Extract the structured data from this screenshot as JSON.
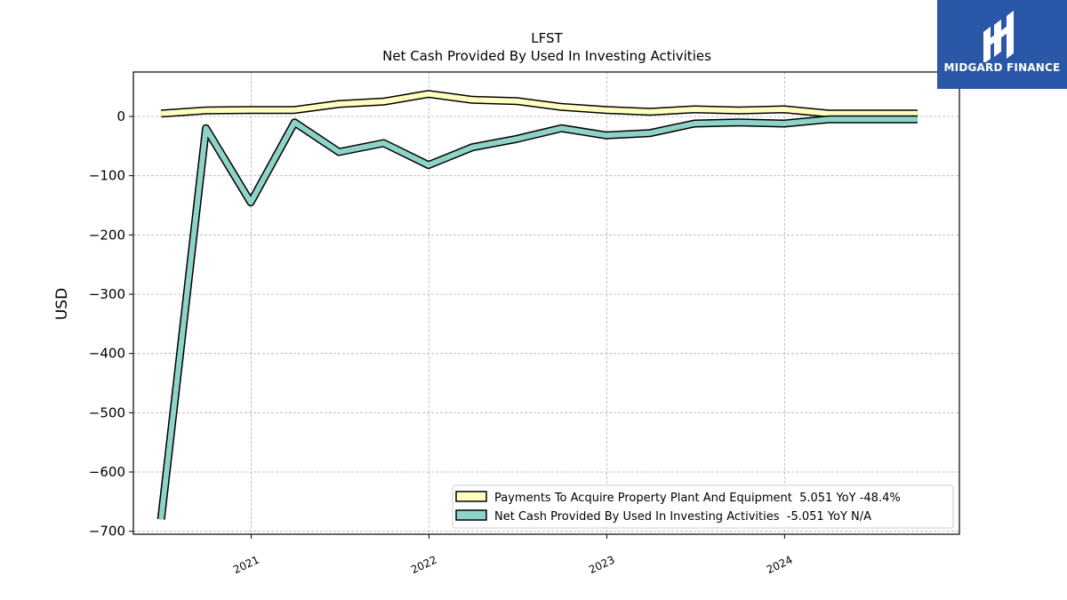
{
  "chart_data": {
    "type": "line",
    "title": "LFST",
    "subtitle": "Net Cash Provided By Used In Investing Activities",
    "ylabel": "USD",
    "xlabel": "",
    "ylim": [
      -705,
      75
    ],
    "xlim": [
      "2020-05-04",
      "2024-12-25"
    ],
    "yticks": [
      0,
      -100,
      -200,
      -300,
      -400,
      -500,
      -600,
      -700
    ],
    "ytick_labels": [
      "0",
      "−100",
      "−200",
      "−300",
      "−400",
      "−500",
      "−600",
      "−700"
    ],
    "xticks": [
      "2021-01-01",
      "2022-01-01",
      "2023-01-01",
      "2024-01-01"
    ],
    "xtick_labels": [
      "2021",
      "2022",
      "2023",
      "2024"
    ],
    "grid": true,
    "legend_position": "lower-right",
    "x": [
      "2020-06-30",
      "2020-09-30",
      "2020-12-31",
      "2021-03-31",
      "2021-06-30",
      "2021-09-30",
      "2021-12-31",
      "2022-03-31",
      "2022-06-30",
      "2022-09-30",
      "2022-12-31",
      "2023-03-31",
      "2023-06-30",
      "2023-09-30",
      "2023-12-31",
      "2024-03-31",
      "2024-06-30",
      "2024-09-30"
    ],
    "series": [
      {
        "name": "Payments To Acquire Property Plant And Equipment  5.051 YoY -48.4%",
        "color": "#ffffbf",
        "values": [
          5,
          10,
          11,
          11,
          21,
          25,
          38,
          28,
          26,
          16,
          11,
          8,
          12,
          10,
          12,
          5,
          5,
          5
        ]
      },
      {
        "name": "Net Cash Provided By Used In Investing Activities  -5.051 YoY N/A",
        "color": "#8dd3c7",
        "values": [
          -680,
          -20,
          -145,
          -10,
          -60,
          -45,
          -82,
          -52,
          -38,
          -20,
          -32,
          -28,
          -12,
          -10,
          -12,
          -5,
          -5,
          -5
        ]
      }
    ]
  },
  "logo": {
    "text": "MIDGARD FINANCE",
    "bg_color": "#2a57a8",
    "icon": "midgard-logo-icon"
  }
}
